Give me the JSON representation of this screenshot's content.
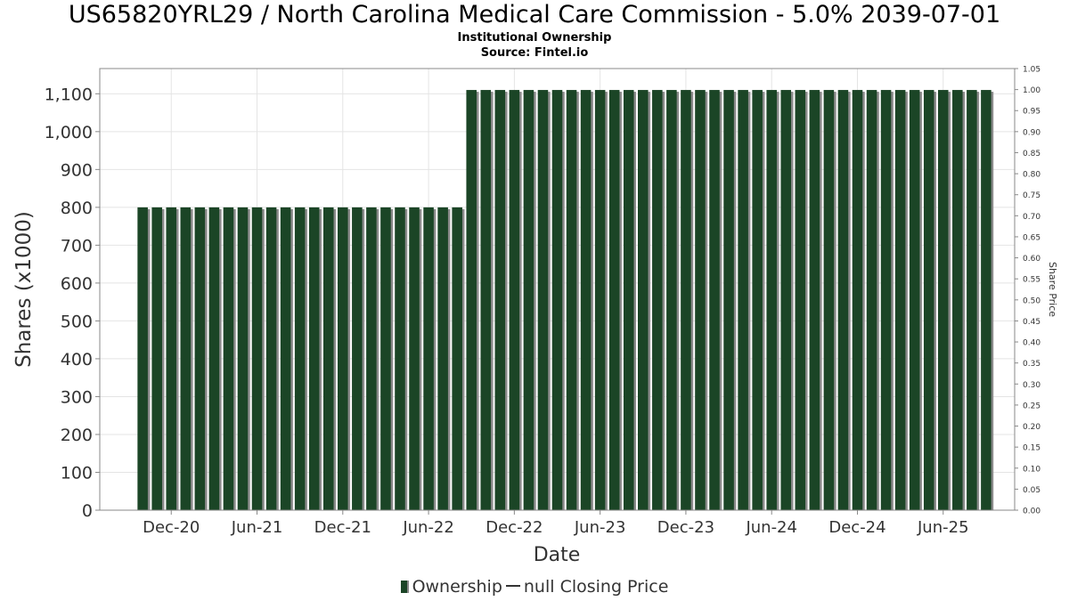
{
  "header": {
    "title": "US65820YRL29 / North Carolina Medical Care Commission - 5.0% 2039-07-01",
    "subtitle": "Institutional Ownership",
    "source": "Source: Fintel.io"
  },
  "legend": {
    "ownership": "Ownership",
    "price": "null Closing Price"
  },
  "colors": {
    "bar": "#1b4526",
    "bar_shadow": "#8a8a8a",
    "grid": "#e4e4e4",
    "plot_border": "#888888"
  },
  "chart_data": {
    "type": "bar",
    "xlabel": "Date",
    "ylabel": "Shares (x1000)",
    "y2label": "Share Price",
    "ylim": [
      0,
      1166.6
    ],
    "y2lim": [
      0,
      1.05
    ],
    "grid": true,
    "legend_position": "bottom",
    "y_ticks": [
      0,
      100,
      200,
      300,
      400,
      500,
      600,
      700,
      800,
      900,
      1000,
      1100
    ],
    "y_tick_labels": [
      "0",
      "100",
      "200",
      "300",
      "400",
      "500",
      "600",
      "700",
      "800",
      "900",
      "1,000",
      "1,100"
    ],
    "y2_ticks": [
      "0.00",
      "0.05",
      "0.10",
      "0.15",
      "0.20",
      "0.25",
      "0.30",
      "0.35",
      "0.40",
      "0.45",
      "0.50",
      "0.55",
      "0.60",
      "0.65",
      "0.70",
      "0.75",
      "0.80",
      "0.85",
      "0.90",
      "0.95",
      "1.00",
      "1.05"
    ],
    "x_ticks": [
      "Dec-20",
      "Jun-21",
      "Dec-21",
      "Jun-22",
      "Dec-22",
      "Jun-23",
      "Dec-23",
      "Jun-24",
      "Dec-24",
      "Jun-25"
    ],
    "x_range_months": [
      "2020-07",
      "2025-11"
    ],
    "series": [
      {
        "name": "Ownership",
        "start_month": "2020-10",
        "values": [
          800,
          800,
          800,
          800,
          800,
          800,
          800,
          800,
          800,
          800,
          800,
          800,
          800,
          800,
          800,
          800,
          800,
          800,
          800,
          800,
          800,
          800,
          800,
          1110,
          1110,
          1110,
          1110,
          1110,
          1110,
          1110,
          1110,
          1110,
          1110,
          1110,
          1110,
          1110,
          1110,
          1110,
          1110,
          1110,
          1110,
          1110,
          1110,
          1110,
          1110,
          1110,
          1110,
          1110,
          1110,
          1110,
          1110,
          1110,
          1110,
          1110,
          1110,
          1110,
          1110,
          1110,
          1110,
          1110
        ]
      }
    ]
  }
}
